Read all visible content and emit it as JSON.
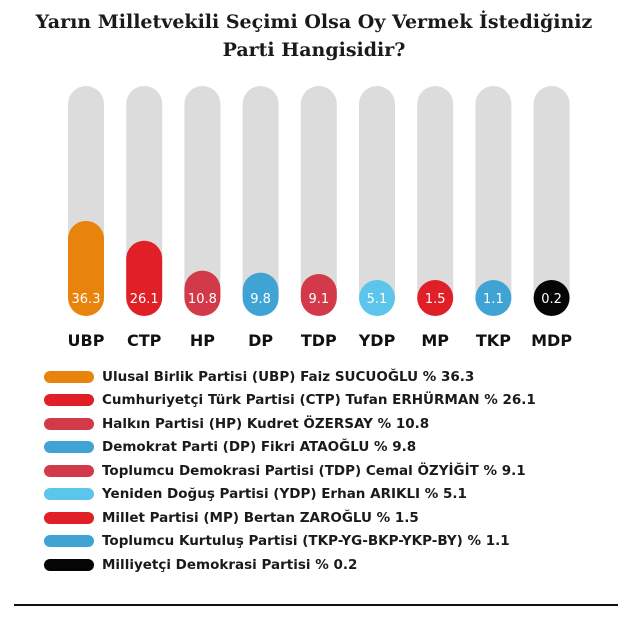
{
  "title_line1": "Yarın Milletvekili Seçimi Olsa Oy Vermek İstediğiniz",
  "title_line2": "Parti Hangisidir?",
  "chart_data": {
    "type": "bar",
    "title": "Yarın Milletvekili Seçimi Olsa Oy Vermek İstediğiniz Parti Hangisidir?",
    "categories": [
      "UBP",
      "CTP",
      "HP",
      "DP",
      "TDP",
      "YDP",
      "MP",
      "TKP",
      "MDP"
    ],
    "values": [
      36.3,
      26.1,
      10.8,
      9.8,
      9.1,
      5.1,
      1.5,
      1.1,
      0.2
    ],
    "data_labels": [
      "36.3",
      "26.1",
      "10.8",
      "9.8",
      "9.1",
      "5.1",
      "1.5",
      "1.1",
      "0.2"
    ],
    "colors": [
      "#e8830c",
      "#e01f26",
      "#d23a4a",
      "#3fa3d4",
      "#d23a4a",
      "#5bc5ec",
      "#e01f26",
      "#3fa3d4",
      "#050505"
    ],
    "track_color": "#dcdcdc",
    "ylim": [
      0,
      100
    ],
    "grid": false,
    "xlabel": "",
    "ylabel": ""
  },
  "legend": [
    {
      "text": "Ulusal Birlik Partisi (UBP) Faiz SUCUOĞLU % 36.3",
      "color": "#e8830c"
    },
    {
      "text": "Cumhuriyetçi Türk Partisi (CTP) Tufan ERHÜRMAN % 26.1",
      "color": "#e01f26"
    },
    {
      "text": "Halkın Partisi (HP) Kudret ÖZERSAY % 10.8",
      "color": "#d23a4a"
    },
    {
      "text": "Demokrat Parti (DP) Fikri ATAOĞLU % 9.8",
      "color": "#3fa3d4"
    },
    {
      "text": "Toplumcu Demokrasi Partisi (TDP) Cemal ÖZYİĞİT % 9.1",
      "color": "#d23a4a"
    },
    {
      "text": "Yeniden Doğuş Partisi (YDP) Erhan ARIKLI % 5.1",
      "color": "#5bc5ec"
    },
    {
      "text": "Millet Partisi (MP) Bertan ZAROĞLU % 1.5",
      "color": "#e01f26"
    },
    {
      "text": "Toplumcu Kurtuluş Partisi (TKP-YG-BKP-YKP-BY) % 1.1",
      "color": "#3fa3d4"
    },
    {
      "text": "Milliyetçi Demokrasi Partisi % 0.2",
      "color": "#050505"
    }
  ]
}
